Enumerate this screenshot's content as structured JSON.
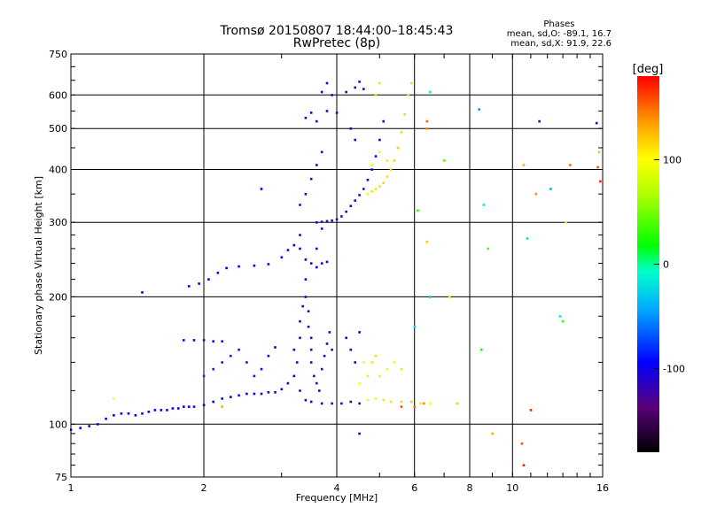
{
  "header": {
    "title_line1": "Tromsø 20150807 18:44:00–18:45:43",
    "title_line2": "RwPretec (8p)"
  },
  "phases": {
    "heading": "Phases",
    "line_o": "mean, sd,O: -89.1, 16.7",
    "line_x": "mean, sd,X:  91.9, 22.6"
  },
  "colorbar": {
    "unit_label": "[deg]",
    "ticks": [
      "100",
      "0",
      "-100"
    ],
    "tick_values": [
      100,
      0,
      -100
    ],
    "range": [
      -180,
      180
    ]
  },
  "chart_data": {
    "type": "scatter",
    "xlabel": "Frequency [MHz]",
    "ylabel": "Stationary phase Virtual Height [km]",
    "xscale": "log",
    "yscale": "log",
    "xlim": [
      1,
      16
    ],
    "ylim": [
      75,
      750
    ],
    "x_ticks": [
      1,
      2,
      4,
      6,
      8,
      10,
      16
    ],
    "x_tick_labels": [
      "1",
      "2",
      "4",
      "6",
      "8",
      "10",
      "16"
    ],
    "y_ticks": [
      75,
      100,
      200,
      300,
      400,
      500,
      600,
      750
    ],
    "y_tick_labels": [
      "75",
      "100",
      "200",
      "300",
      "400",
      "500",
      "600",
      "750"
    ],
    "grid": true,
    "points": [
      [
        1.0,
        97,
        -100
      ],
      [
        1.05,
        98,
        -98
      ],
      [
        1.1,
        99,
        -97
      ],
      [
        1.15,
        100,
        -100
      ],
      [
        1.2,
        103,
        -95
      ],
      [
        1.25,
        105,
        -100
      ],
      [
        1.3,
        106,
        -98
      ],
      [
        1.35,
        106,
        -96
      ],
      [
        1.4,
        105,
        -99
      ],
      [
        1.45,
        106,
        -97
      ],
      [
        1.5,
        107,
        -100
      ],
      [
        1.55,
        108,
        -98
      ],
      [
        1.6,
        108,
        -95
      ],
      [
        1.65,
        108,
        -99
      ],
      [
        1.7,
        109,
        -97
      ],
      [
        1.75,
        109,
        -100
      ],
      [
        1.8,
        110,
        -96
      ],
      [
        1.85,
        110,
        -98
      ],
      [
        1.9,
        110,
        -101
      ],
      [
        2.0,
        111,
        -97
      ],
      [
        2.1,
        113,
        -99
      ],
      [
        2.2,
        115,
        -96
      ],
      [
        2.3,
        116,
        -98
      ],
      [
        2.4,
        117,
        -100
      ],
      [
        2.5,
        118,
        -95
      ],
      [
        2.6,
        118,
        -97
      ],
      [
        2.7,
        118,
        -99
      ],
      [
        2.8,
        119,
        -96
      ],
      [
        2.9,
        119,
        -98
      ],
      [
        3.0,
        121,
        -97
      ],
      [
        3.1,
        125,
        -95
      ],
      [
        3.2,
        130,
        -100
      ],
      [
        3.3,
        120,
        -115
      ],
      [
        3.4,
        114,
        -120
      ],
      [
        3.5,
        113,
        -118
      ],
      [
        3.7,
        112,
        -116
      ],
      [
        3.9,
        112,
        -120
      ],
      [
        4.1,
        112,
        -119
      ],
      [
        4.3,
        113,
        -115
      ],
      [
        4.5,
        112,
        -117
      ],
      [
        4.7,
        114,
        100
      ],
      [
        4.9,
        115,
        105
      ],
      [
        5.1,
        114,
        108
      ],
      [
        5.3,
        113,
        110
      ],
      [
        5.6,
        113,
        115
      ],
      [
        5.9,
        113,
        120
      ],
      [
        6.2,
        112,
        112
      ],
      [
        6.5,
        112,
        102
      ],
      [
        1.8,
        158,
        -90
      ],
      [
        1.9,
        158,
        -92
      ],
      [
        2.0,
        158,
        -88
      ],
      [
        2.1,
        157,
        -92
      ],
      [
        2.2,
        157,
        -90
      ],
      [
        2.0,
        130,
        -80
      ],
      [
        2.1,
        135,
        -82
      ],
      [
        2.2,
        140,
        -85
      ],
      [
        2.3,
        145,
        -84
      ],
      [
        2.4,
        150,
        -86
      ],
      [
        2.5,
        140,
        -85
      ],
      [
        2.6,
        130,
        -88
      ],
      [
        2.7,
        135,
        -90
      ],
      [
        2.8,
        145,
        -92
      ],
      [
        2.9,
        152,
        -94
      ],
      [
        1.85,
        212,
        -92
      ],
      [
        1.95,
        215,
        -93
      ],
      [
        2.05,
        220,
        -95
      ],
      [
        2.15,
        228,
        -95
      ],
      [
        2.25,
        234,
        -96
      ],
      [
        2.4,
        236,
        -95
      ],
      [
        2.6,
        237,
        -97
      ],
      [
        2.8,
        239,
        -96
      ],
      [
        3.0,
        248,
        -98
      ],
      [
        3.1,
        258,
        -99
      ],
      [
        3.2,
        265,
        -100
      ],
      [
        3.3,
        260,
        -101
      ],
      [
        3.4,
        245,
        -102
      ],
      [
        3.5,
        240,
        -103
      ],
      [
        3.6,
        235,
        -104
      ],
      [
        3.7,
        240,
        -105
      ],
      [
        3.8,
        242,
        -104
      ],
      [
        2.7,
        360,
        -95
      ],
      [
        3.3,
        280,
        -105
      ],
      [
        3.4,
        220,
        -110
      ],
      [
        3.4,
        200,
        -112
      ],
      [
        3.45,
        185,
        -115
      ],
      [
        3.45,
        170,
        -118
      ],
      [
        3.5,
        160,
        -120
      ],
      [
        3.5,
        150,
        -115
      ],
      [
        3.5,
        140,
        -118
      ],
      [
        3.55,
        130,
        -120
      ],
      [
        3.6,
        125,
        -117
      ],
      [
        3.65,
        120,
        -121
      ],
      [
        3.7,
        135,
        -116
      ],
      [
        3.75,
        145,
        -119
      ],
      [
        3.8,
        155,
        -118
      ],
      [
        3.85,
        165,
        -114
      ],
      [
        3.9,
        150,
        -112
      ],
      [
        3.3,
        160,
        -104
      ],
      [
        3.3,
        175,
        -106
      ],
      [
        3.35,
        190,
        -108
      ],
      [
        3.2,
        150,
        -108
      ],
      [
        3.25,
        140,
        -106
      ],
      [
        4.2,
        160,
        -108
      ],
      [
        4.3,
        150,
        -110
      ],
      [
        4.4,
        140,
        -105
      ],
      [
        4.5,
        165,
        -107
      ],
      [
        3.6,
        300,
        -118
      ],
      [
        3.7,
        301,
        -120
      ],
      [
        3.8,
        302,
        -117
      ],
      [
        3.9,
        303,
        -119
      ],
      [
        4.0,
        305,
        -116
      ],
      [
        4.1,
        310,
        -115
      ],
      [
        4.2,
        318,
        -113
      ],
      [
        4.3,
        328,
        -112
      ],
      [
        4.4,
        338,
        -110
      ],
      [
        4.5,
        348,
        -109
      ],
      [
        4.6,
        360,
        -108
      ],
      [
        4.7,
        378,
        -106
      ],
      [
        4.8,
        400,
        -104
      ],
      [
        4.9,
        430,
        -103
      ],
      [
        5.0,
        470,
        -101
      ],
      [
        5.1,
        520,
        -100
      ],
      [
        3.3,
        330,
        -115
      ],
      [
        3.4,
        350,
        -117
      ],
      [
        3.5,
        380,
        -114
      ],
      [
        3.6,
        410,
        -116
      ],
      [
        3.7,
        440,
        -112
      ],
      [
        3.4,
        530,
        -108
      ],
      [
        3.5,
        545,
        -110
      ],
      [
        3.6,
        520,
        -109
      ],
      [
        3.7,
        610,
        -106
      ],
      [
        3.8,
        640,
        -107
      ],
      [
        3.9,
        600,
        -108
      ],
      [
        4.2,
        610,
        -112
      ],
      [
        4.4,
        625,
        -110
      ],
      [
        4.5,
        645,
        -111
      ],
      [
        3.8,
        550,
        -108
      ],
      [
        4.0,
        545,
        -110
      ],
      [
        4.3,
        500,
        -106
      ],
      [
        4.4,
        470,
        -108
      ],
      [
        4.6,
        620,
        -112
      ],
      [
        4.7,
        350,
        105
      ],
      [
        4.8,
        355,
        108
      ],
      [
        4.9,
        360,
        110
      ],
      [
        5.0,
        365,
        112
      ],
      [
        5.1,
        372,
        115
      ],
      [
        5.2,
        385,
        114
      ],
      [
        5.3,
        400,
        116
      ],
      [
        5.4,
        420,
        118
      ],
      [
        5.5,
        450,
        120
      ],
      [
        5.6,
        490,
        118
      ],
      [
        5.7,
        540,
        115
      ],
      [
        5.8,
        600,
        112
      ],
      [
        5.9,
        640,
        115
      ],
      [
        5.0,
        640,
        110
      ],
      [
        4.9,
        600,
        112
      ],
      [
        4.8,
        410,
        106
      ],
      [
        5.2,
        420,
        108
      ],
      [
        5.0,
        440,
        104
      ],
      [
        4.7,
        130,
        110
      ],
      [
        4.8,
        140,
        112
      ],
      [
        4.9,
        145,
        115
      ],
      [
        5.0,
        130,
        108
      ],
      [
        5.2,
        135,
        106
      ],
      [
        5.4,
        140,
        105
      ],
      [
        5.6,
        135,
        110
      ],
      [
        4.5,
        125,
        102
      ],
      [
        4.6,
        140,
        104
      ],
      [
        6.4,
        500,
        140
      ],
      [
        6.4,
        520,
        150
      ],
      [
        6.5,
        610,
        0
      ],
      [
        6.4,
        270,
        120
      ],
      [
        6.1,
        320,
        30
      ],
      [
        7.0,
        420,
        40
      ],
      [
        6.0,
        170,
        -20
      ],
      [
        6.5,
        200,
        -30
      ],
      [
        7.2,
        200,
        80
      ],
      [
        8.5,
        150,
        20
      ],
      [
        8.6,
        330,
        -10
      ],
      [
        8.4,
        555,
        -50
      ],
      [
        8.8,
        260,
        40
      ],
      [
        9.0,
        95,
        130
      ],
      [
        10.5,
        90,
        160
      ],
      [
        10.6,
        410,
        130
      ],
      [
        10.8,
        275,
        -20
      ],
      [
        11.0,
        108,
        170
      ],
      [
        11.3,
        350,
        140
      ],
      [
        11.5,
        520,
        -120
      ],
      [
        12.2,
        360,
        -40
      ],
      [
        12.8,
        180,
        -10
      ],
      [
        13.0,
        175,
        30
      ],
      [
        13.2,
        300,
        90
      ],
      [
        13.5,
        410,
        150
      ],
      [
        15.5,
        515,
        -120
      ],
      [
        15.6,
        405,
        160
      ],
      [
        15.8,
        375,
        170
      ],
      [
        15.7,
        440,
        120
      ],
      [
        10.6,
        80,
        175
      ],
      [
        5.6,
        110,
        160
      ],
      [
        6.0,
        110,
        150
      ],
      [
        6.3,
        112,
        140
      ],
      [
        7.5,
        112,
        60
      ],
      [
        4.5,
        95,
        -100
      ],
      [
        1.45,
        205,
        -98
      ],
      [
        1.25,
        115,
        100
      ],
      [
        2.2,
        110,
        130
      ],
      [
        3.6,
        260,
        -110
      ],
      [
        3.7,
        290,
        -112
      ]
    ]
  }
}
